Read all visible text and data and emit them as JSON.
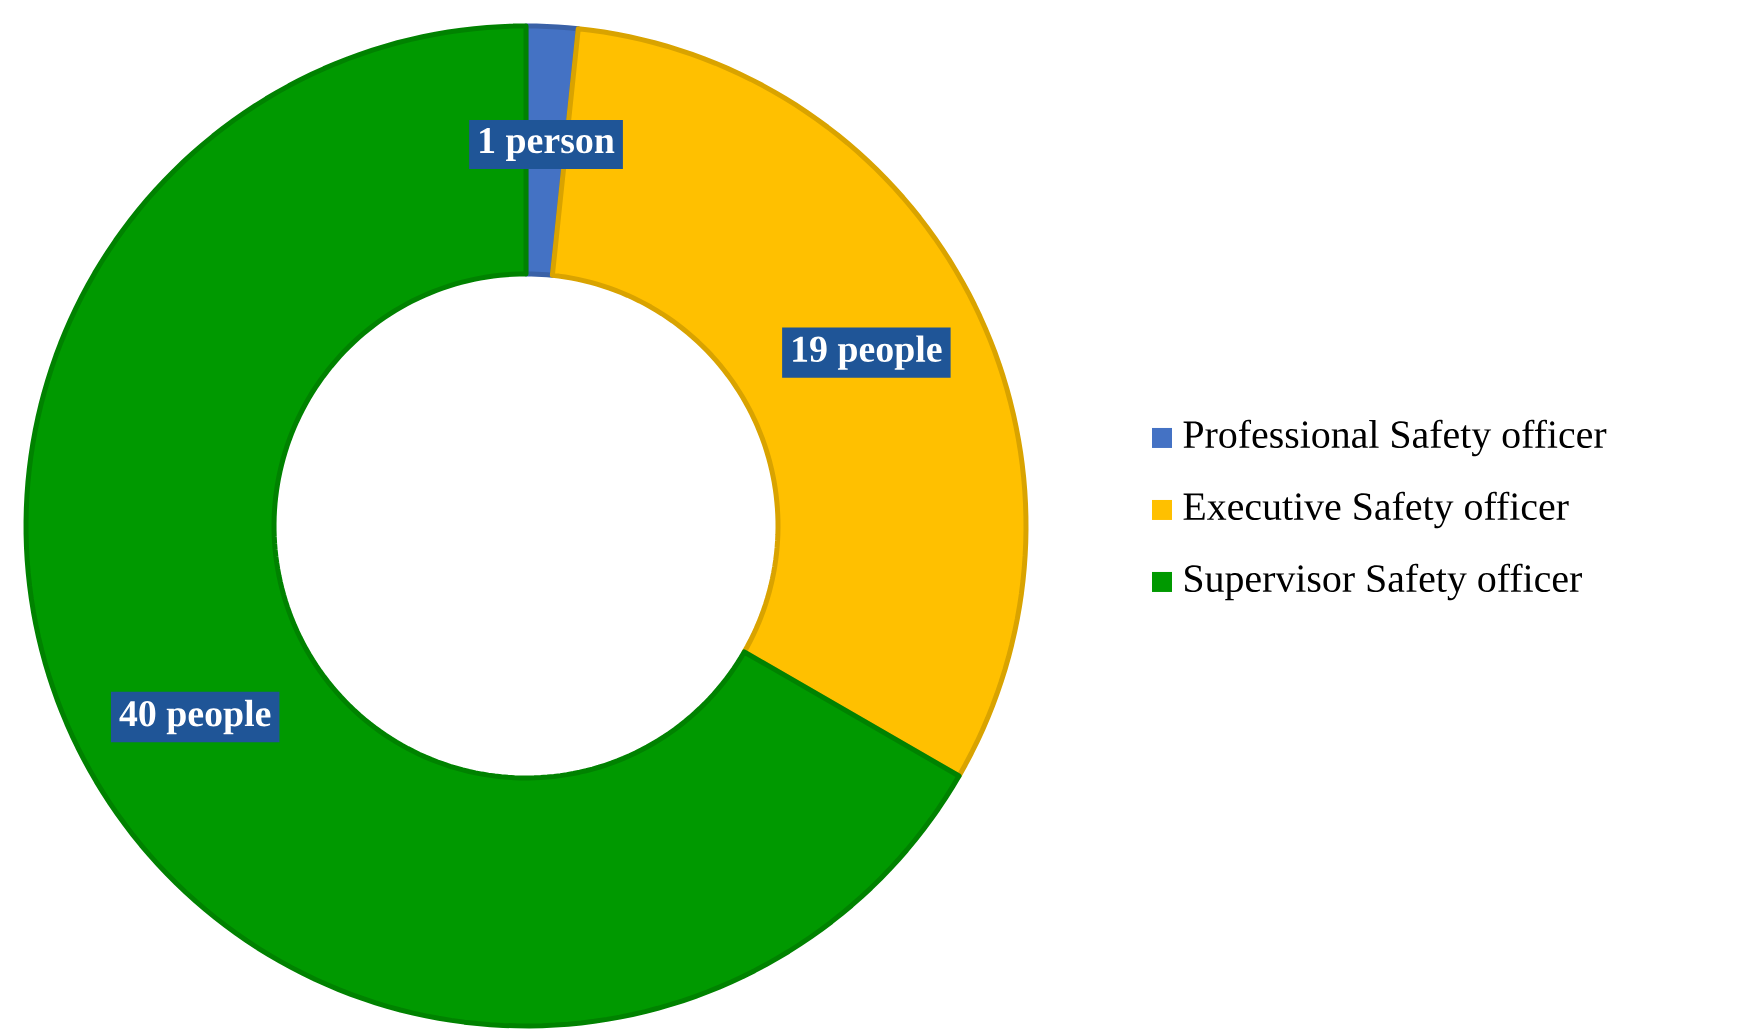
{
  "chart_data": {
    "type": "donut",
    "categories": [
      "Professional Safety officer",
      "Executive Safety officer",
      "Supervisor Safety officer"
    ],
    "values": [
      1,
      19,
      40
    ],
    "colors": [
      "#4472c4",
      "#ffc000",
      "#009900"
    ],
    "value_labels": [
      "1 person",
      "19 people",
      "40 people"
    ],
    "legend": "right"
  }
}
